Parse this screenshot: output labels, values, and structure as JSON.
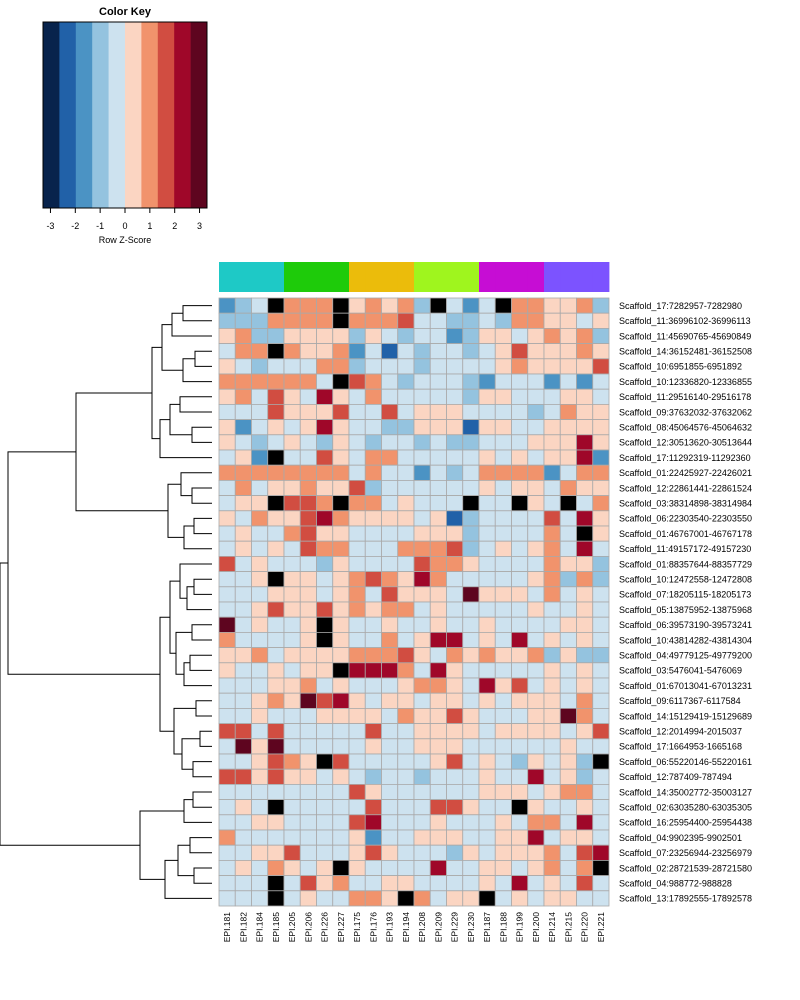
{
  "chart_data": {
    "type": "heatmap",
    "color_key": {
      "title": "Color Key",
      "xlabel": "Row Z-Score",
      "ticks": [
        "-3",
        "-2",
        "-1",
        "0",
        "1",
        "2",
        "3"
      ],
      "range": [
        -3.3,
        3.3
      ],
      "palette": [
        "#08234c",
        "#2161a8",
        "#4b93c4",
        "#94c3df",
        "#cde2ef",
        "#fbd5c2",
        "#f1936c",
        "#d14d41",
        "#9f0729",
        "#5e051f"
      ]
    },
    "group_colors": [
      "#1ec9c6",
      "#1ecb0a",
      "#ebbc0b",
      "#9ff51e",
      "#c60dd4",
      "#7c53ff"
    ],
    "groups": [
      0,
      0,
      0,
      0,
      1,
      1,
      1,
      1,
      2,
      2,
      2,
      2,
      3,
      3,
      3,
      3,
      4,
      4,
      4,
      4,
      5,
      5,
      5,
      5
    ],
    "columns": [
      "EPI.181",
      "EPI.182",
      "EPI.184",
      "EPI.185",
      "EPI.205",
      "EPI.206",
      "EPI.226",
      "EPI.227",
      "EPI.175",
      "EPI.176",
      "EPI.193",
      "EPI.194",
      "EPI.208",
      "EPI.209",
      "EPI.229",
      "EPI.230",
      "EPI.187",
      "EPI.188",
      "EPI.199",
      "EPI.200",
      "EPI.214",
      "EPI.215",
      "EPI.220",
      "EPI.221"
    ],
    "rows": [
      "Scaffold_17:7282957-7282980",
      "Scaffold_11:36996102-36996113",
      "Scaffold_11:45690765-45690849",
      "Scaffold_14:36152481-36152508",
      "Scaffold_10:6951855-6951892",
      "Scaffold_10:12336820-12336855",
      "Scaffold_11:29516140-29516178",
      "Scaffold_09:37632032-37632062",
      "Scaffold_08:45064576-45064632",
      "Scaffold_12:30513620-30513644",
      "Scaffold_17:11292319-11292360",
      "Scaffold_01:22425927-22426021",
      "Scaffold_12:22861441-22861524",
      "Scaffold_03:38314898-38314984",
      "Scaffold_06:22303540-22303550",
      "Scaffold_01:46767001-46767178",
      "Scaffold_11:49157172-49157230",
      "Scaffold_01:88357644-88357729",
      "Scaffold_10:12472558-12472808",
      "Scaffold_07:18205115-18205173",
      "Scaffold_05:13875952-13875968",
      "Scaffold_06:39573190-39573241",
      "Scaffold_10:43814282-43814304",
      "Scaffold_04:49779125-49779200",
      "Scaffold_03:5476041-5476069",
      "Scaffold_01:67013041-67013231",
      "Scaffold_09:6117367-6117584",
      "Scaffold_14:15129419-15129689",
      "Scaffold_12:2014994-2015037",
      "Scaffold_17:1664953-1665168",
      "Scaffold_06:55220146-55220161",
      "Scaffold_12:787409-787494",
      "Scaffold_14:35002772-35003127",
      "Scaffold_02:63035280-63035305",
      "Scaffold_16:25954400-25954438",
      "Scaffold_04:9902395-9902501",
      "Scaffold_07:23256944-23256979",
      "Scaffold_02:28721539-28721580",
      "Scaffold_04:988772-988828",
      "Scaffold_13:17892555-17892578"
    ],
    "values": [
      [
        2,
        3,
        4,
        10,
        6,
        6,
        6,
        10,
        5,
        6,
        5,
        6,
        3,
        10,
        4,
        2,
        4,
        10,
        6,
        6,
        5,
        5,
        6,
        3
      ],
      [
        3,
        3,
        3,
        6,
        6,
        6,
        6,
        10,
        6,
        6,
        6,
        7,
        4,
        4,
        3,
        3,
        4,
        3,
        6,
        6,
        5,
        5,
        4,
        5
      ],
      [
        5,
        6,
        3,
        3,
        5,
        5,
        5,
        5,
        3,
        5,
        4,
        3,
        4,
        4,
        2,
        3,
        5,
        5,
        4,
        5,
        6,
        5,
        6,
        3
      ],
      [
        4,
        6,
        6,
        10,
        6,
        5,
        5,
        6,
        2,
        4,
        1,
        4,
        3,
        4,
        4,
        3,
        4,
        5,
        7,
        5,
        5,
        5,
        6,
        5
      ],
      [
        5,
        4,
        3,
        4,
        4,
        4,
        6,
        6,
        3,
        4,
        4,
        4,
        3,
        4,
        4,
        4,
        4,
        5,
        6,
        5,
        5,
        5,
        5,
        7
      ],
      [
        6,
        6,
        6,
        6,
        6,
        6,
        4,
        10,
        7,
        6,
        4,
        3,
        4,
        4,
        4,
        3,
        2,
        4,
        4,
        4,
        2,
        4,
        2,
        4
      ],
      [
        5,
        6,
        4,
        7,
        5,
        4,
        8,
        5,
        4,
        6,
        4,
        4,
        4,
        4,
        4,
        3,
        5,
        5,
        4,
        4,
        4,
        5,
        5,
        4
      ],
      [
        4,
        4,
        4,
        7,
        5,
        5,
        5,
        7,
        4,
        4,
        7,
        4,
        5,
        5,
        5,
        4,
        4,
        4,
        4,
        3,
        4,
        6,
        5,
        5
      ],
      [
        5,
        2,
        4,
        5,
        4,
        5,
        8,
        5,
        4,
        4,
        3,
        3,
        5,
        5,
        5,
        1,
        5,
        5,
        4,
        4,
        5,
        5,
        5,
        5
      ],
      [
        5,
        4,
        3,
        4,
        5,
        4,
        3,
        5,
        4,
        3,
        4,
        4,
        3,
        4,
        3,
        3,
        4,
        4,
        4,
        5,
        5,
        5,
        8,
        5
      ],
      [
        4,
        5,
        2,
        10,
        4,
        4,
        7,
        5,
        4,
        6,
        6,
        4,
        4,
        4,
        4,
        4,
        5,
        4,
        5,
        4,
        5,
        5,
        8,
        2
      ],
      [
        6,
        6,
        6,
        6,
        6,
        6,
        6,
        6,
        4,
        6,
        4,
        4,
        2,
        4,
        3,
        4,
        6,
        6,
        6,
        6,
        2,
        4,
        6,
        6
      ],
      [
        4,
        6,
        4,
        5,
        5,
        6,
        5,
        5,
        7,
        3,
        4,
        4,
        4,
        4,
        4,
        4,
        5,
        4,
        5,
        5,
        4,
        6,
        5,
        5
      ],
      [
        4,
        5,
        5,
        10,
        7,
        7,
        6,
        10,
        6,
        6,
        4,
        5,
        4,
        4,
        4,
        10,
        4,
        4,
        10,
        5,
        4,
        10,
        4,
        6
      ],
      [
        5,
        4,
        6,
        5,
        5,
        7,
        8,
        6,
        5,
        5,
        5,
        5,
        4,
        5,
        1,
        3,
        4,
        4,
        4,
        4,
        7,
        4,
        8,
        5
      ],
      [
        4,
        5,
        4,
        4,
        6,
        7,
        5,
        5,
        4,
        4,
        4,
        4,
        5,
        5,
        5,
        3,
        4,
        4,
        4,
        4,
        6,
        4,
        10,
        5
      ],
      [
        4,
        5,
        4,
        5,
        4,
        7,
        6,
        6,
        4,
        4,
        4,
        6,
        6,
        6,
        7,
        3,
        4,
        5,
        4,
        5,
        6,
        4,
        8,
        4
      ],
      [
        7,
        4,
        5,
        4,
        4,
        4,
        3,
        5,
        4,
        4,
        4,
        4,
        7,
        6,
        6,
        5,
        4,
        4,
        4,
        4,
        6,
        5,
        5,
        3
      ],
      [
        4,
        4,
        5,
        10,
        5,
        5,
        4,
        5,
        6,
        7,
        6,
        5,
        8,
        6,
        4,
        4,
        4,
        4,
        4,
        5,
        6,
        3,
        6,
        3
      ],
      [
        4,
        4,
        4,
        5,
        5,
        5,
        4,
        5,
        6,
        4,
        7,
        5,
        5,
        5,
        4,
        9,
        5,
        5,
        5,
        4,
        6,
        4,
        5,
        4
      ],
      [
        4,
        4,
        5,
        7,
        5,
        5,
        7,
        5,
        6,
        5,
        6,
        6,
        4,
        5,
        4,
        4,
        4,
        4,
        4,
        5,
        4,
        4,
        5,
        4
      ],
      [
        9,
        4,
        5,
        4,
        4,
        5,
        10,
        5,
        4,
        4,
        5,
        4,
        4,
        5,
        4,
        4,
        5,
        4,
        4,
        4,
        4,
        5,
        5,
        4
      ],
      [
        6,
        4,
        4,
        4,
        4,
        5,
        10,
        5,
        4,
        4,
        6,
        4,
        5,
        8,
        8,
        4,
        5,
        4,
        8,
        4,
        5,
        4,
        5,
        4
      ],
      [
        5,
        5,
        6,
        4,
        5,
        5,
        5,
        5,
        6,
        6,
        6,
        7,
        5,
        4,
        6,
        5,
        6,
        5,
        5,
        6,
        3,
        5,
        3,
        3
      ],
      [
        5,
        4,
        4,
        5,
        4,
        5,
        5,
        10,
        8,
        8,
        8,
        6,
        4,
        8,
        5,
        4,
        4,
        4,
        4,
        4,
        5,
        4,
        5,
        4
      ],
      [
        4,
        4,
        4,
        5,
        5,
        6,
        4,
        5,
        4,
        4,
        4,
        5,
        6,
        6,
        5,
        4,
        8,
        5,
        7,
        4,
        5,
        4,
        5,
        4
      ],
      [
        4,
        4,
        5,
        6,
        5,
        9,
        7,
        8,
        5,
        4,
        5,
        5,
        4,
        5,
        5,
        4,
        5,
        4,
        5,
        5,
        5,
        4,
        6,
        4
      ],
      [
        4,
        4,
        5,
        4,
        4,
        4,
        5,
        5,
        5,
        5,
        4,
        6,
        5,
        5,
        7,
        5,
        4,
        4,
        4,
        5,
        5,
        9,
        6,
        4
      ],
      [
        7,
        7,
        4,
        7,
        4,
        4,
        4,
        4,
        4,
        7,
        4,
        4,
        5,
        5,
        5,
        5,
        4,
        5,
        5,
        5,
        5,
        4,
        5,
        7
      ],
      [
        4,
        9,
        5,
        9,
        4,
        4,
        4,
        4,
        4,
        5,
        4,
        4,
        5,
        5,
        5,
        4,
        4,
        4,
        4,
        4,
        4,
        5,
        4,
        4
      ],
      [
        4,
        4,
        5,
        7,
        6,
        5,
        10,
        7,
        4,
        4,
        4,
        4,
        4,
        5,
        7,
        4,
        5,
        4,
        3,
        5,
        4,
        5,
        3,
        10
      ],
      [
        7,
        7,
        5,
        7,
        5,
        5,
        4,
        5,
        4,
        3,
        4,
        4,
        3,
        4,
        4,
        4,
        5,
        4,
        4,
        8,
        4,
        5,
        3,
        4
      ],
      [
        4,
        4,
        4,
        4,
        4,
        4,
        4,
        4,
        7,
        5,
        4,
        4,
        4,
        4,
        4,
        4,
        5,
        5,
        5,
        4,
        5,
        6,
        6,
        4
      ],
      [
        4,
        5,
        4,
        10,
        4,
        4,
        4,
        4,
        4,
        7,
        4,
        4,
        4,
        7,
        7,
        5,
        4,
        4,
        10,
        5,
        4,
        4,
        5,
        4
      ],
      [
        4,
        4,
        5,
        5,
        4,
        4,
        4,
        4,
        7,
        8,
        4,
        4,
        4,
        5,
        4,
        4,
        4,
        5,
        4,
        6,
        6,
        4,
        8,
        4
      ],
      [
        6,
        4,
        4,
        4,
        4,
        4,
        4,
        4,
        5,
        2,
        4,
        4,
        5,
        5,
        5,
        4,
        4,
        5,
        5,
        8,
        4,
        5,
        5,
        4
      ],
      [
        4,
        4,
        5,
        5,
        7,
        4,
        4,
        4,
        5,
        7,
        5,
        4,
        4,
        4,
        3,
        5,
        4,
        5,
        5,
        5,
        6,
        4,
        7,
        8
      ],
      [
        4,
        5,
        4,
        6,
        5,
        4,
        5,
        10,
        5,
        4,
        4,
        4,
        4,
        8,
        4,
        4,
        5,
        5,
        4,
        5,
        6,
        4,
        6,
        10
      ],
      [
        4,
        4,
        4,
        10,
        4,
        7,
        5,
        6,
        4,
        4,
        5,
        5,
        4,
        4,
        4,
        4,
        5,
        4,
        8,
        4,
        5,
        4,
        7,
        4
      ],
      [
        4,
        4,
        4,
        10,
        4,
        5,
        4,
        4,
        6,
        6,
        5,
        10,
        6,
        4,
        5,
        5,
        10,
        4,
        5,
        4,
        5,
        5,
        4,
        4
      ]
    ]
  }
}
